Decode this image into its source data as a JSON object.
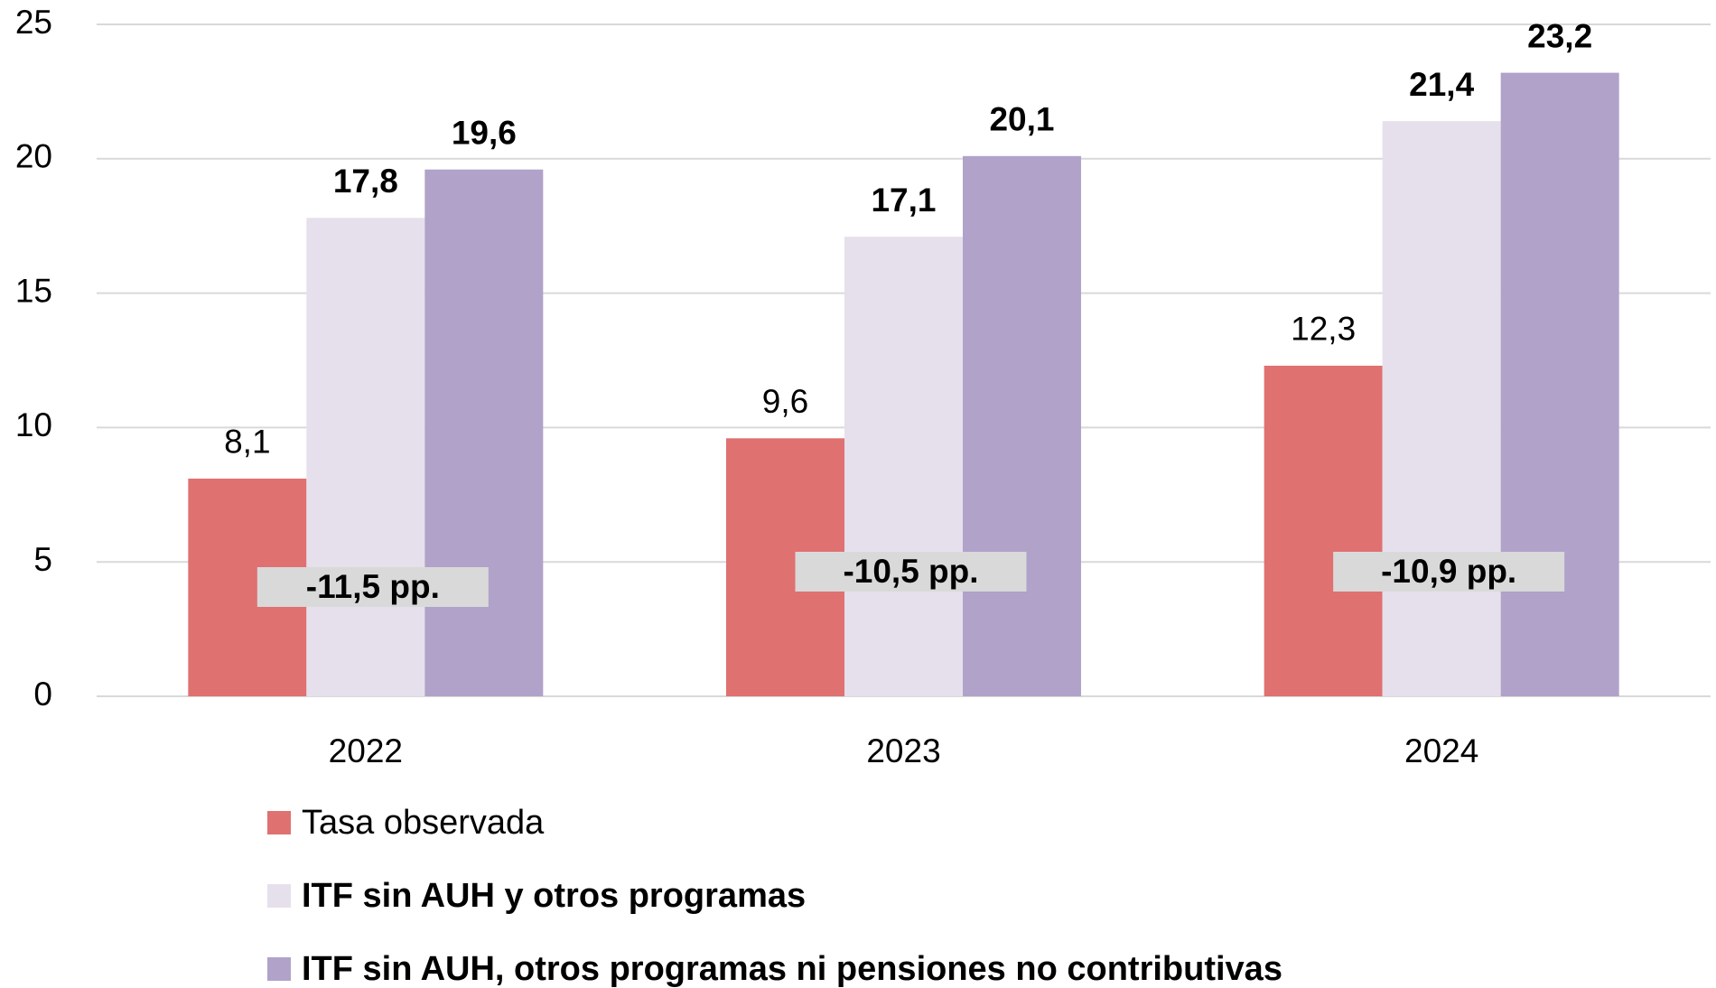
{
  "chart_data": {
    "type": "bar",
    "categories": [
      "2022",
      "2023",
      "2024"
    ],
    "series": [
      {
        "name": "Tasa observada",
        "color": "#df7171",
        "bold": false,
        "values": [
          8.1,
          9.6,
          12.3
        ],
        "value_labels": [
          "8,1",
          "9,6",
          "12,3"
        ]
      },
      {
        "name": "ITF sin AUH y otros programas",
        "color": "#e6e0ec",
        "bold": true,
        "values": [
          17.8,
          17.1,
          21.4
        ],
        "value_labels": [
          "17,8",
          "17,1",
          "21,4"
        ]
      },
      {
        "name": "ITF sin AUH, otros programas ni pensiones no contributivas",
        "color": "#b0a2c9",
        "bold": true,
        "values": [
          19.6,
          20.1,
          23.2
        ],
        "value_labels": [
          "19,6",
          "20,1",
          "23,2"
        ]
      }
    ],
    "annotations": [
      "-11,5 pp.",
      "-10,5 pp.",
      "-10,9 pp."
    ],
    "ylim": [
      0,
      25
    ],
    "yticks": [
      0,
      5,
      10,
      15,
      20,
      25
    ],
    "grid": true,
    "legend": "bottom"
  }
}
